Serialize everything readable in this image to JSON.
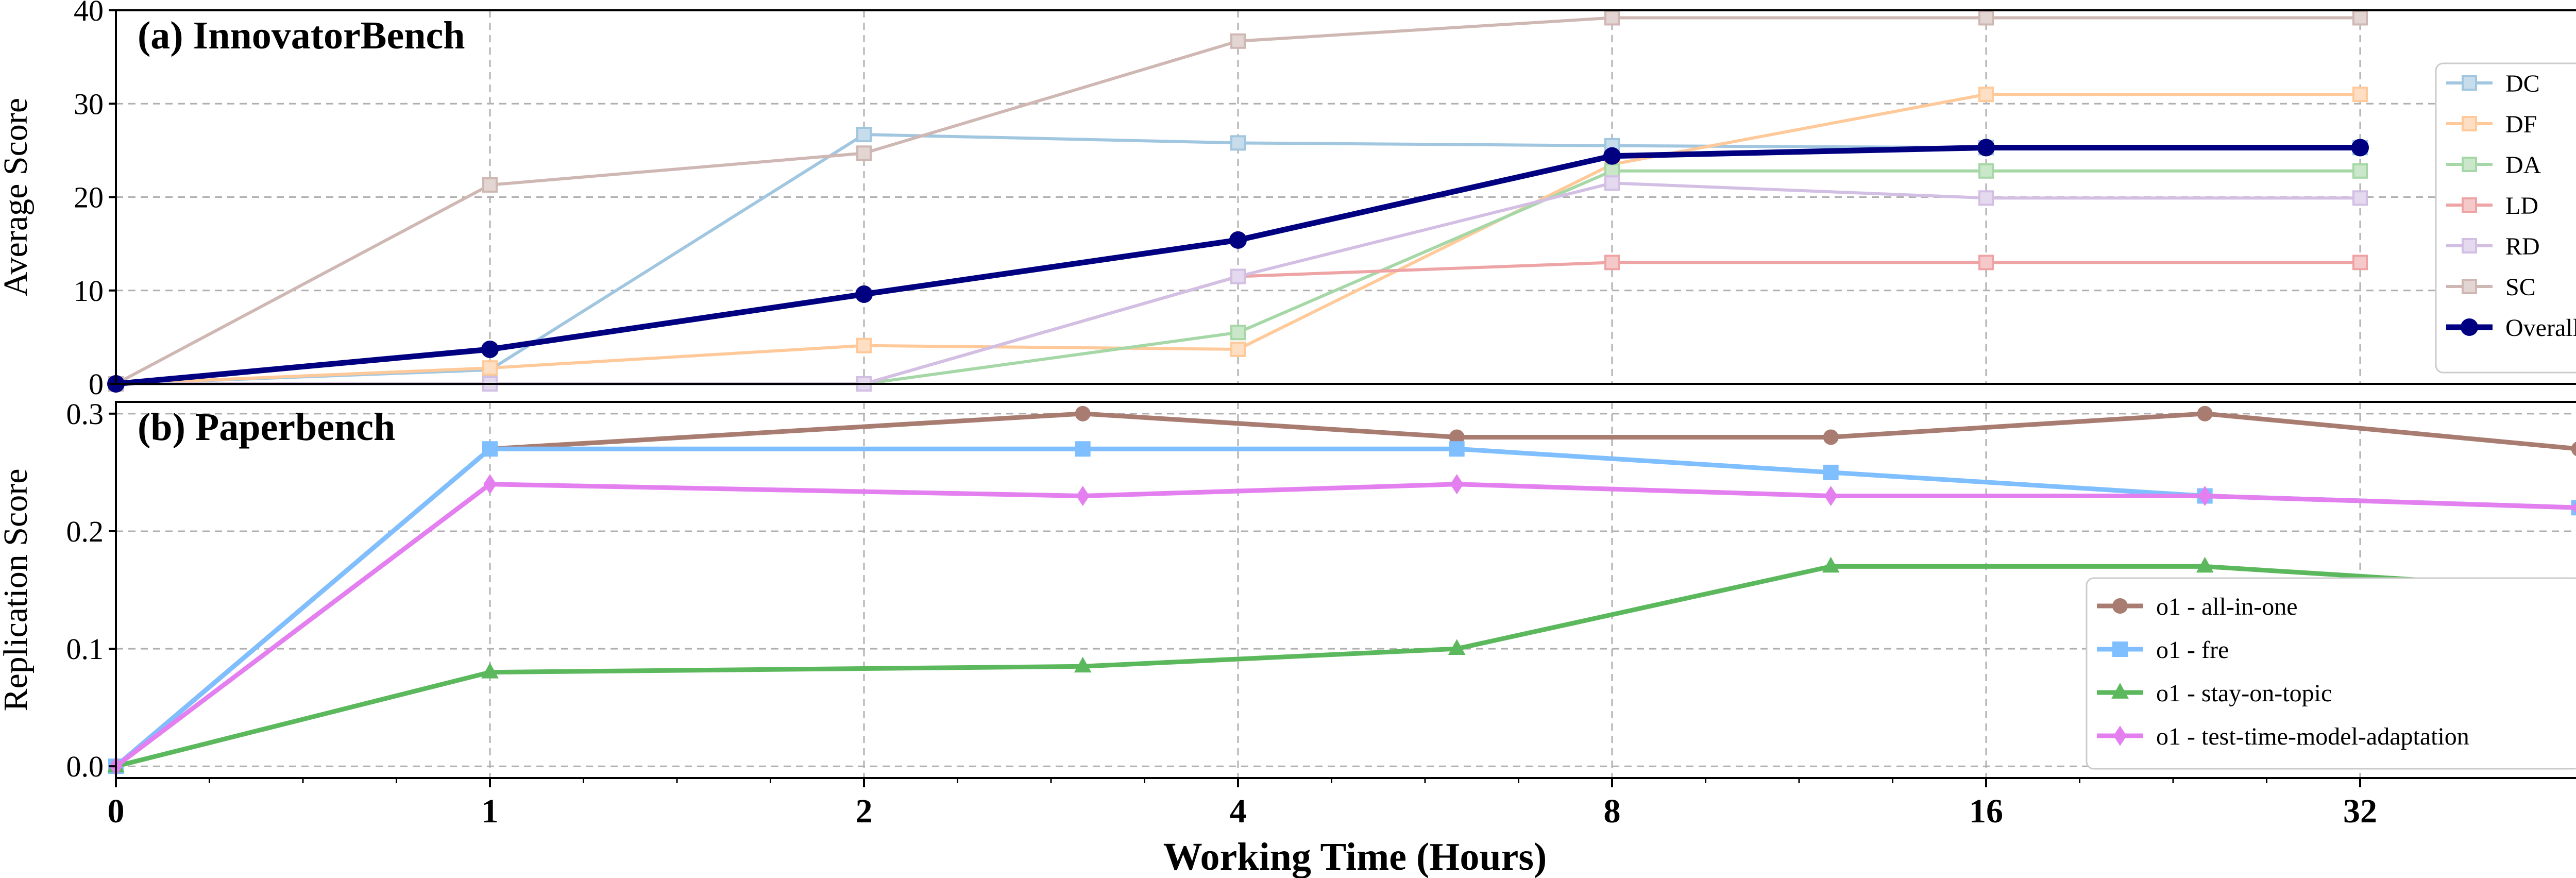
{
  "chart_data": [
    {
      "type": "line",
      "title": "(a) InnovatorBench",
      "xlabel": "",
      "ylabel": "Average Score",
      "x_scale": "log2",
      "x_ticks": [
        0,
        1,
        2,
        4,
        8,
        16,
        32
      ],
      "ylim": [
        0,
        40
      ],
      "y_ticks": [
        0,
        10,
        20,
        30,
        40
      ],
      "grid": true,
      "legend": "right",
      "x": [
        0,
        1,
        2,
        4,
        8,
        16,
        32
      ],
      "series": [
        {
          "name": "DC",
          "color": "#1f77b4",
          "marker": "square",
          "values": [
            0,
            1.5,
            26.7,
            25.8,
            25.5,
            25.3,
            25.3
          ]
        },
        {
          "name": "DF",
          "color": "#ff7f0e",
          "marker": "square",
          "values": [
            0,
            1.7,
            4.1,
            3.7,
            23.5,
            31.0,
            31.0
          ]
        },
        {
          "name": "DA",
          "color": "#2ca02c",
          "marker": "square",
          "values": [
            0,
            0,
            0,
            5.5,
            22.8,
            22.8,
            22.8
          ]
        },
        {
          "name": "LD",
          "color": "#d62728",
          "marker": "square",
          "values": [
            0,
            0,
            0,
            11.5,
            13.0,
            13.0,
            13.0
          ]
        },
        {
          "name": "RD",
          "color": "#9467bd",
          "marker": "square",
          "values": [
            0,
            0,
            0,
            11.5,
            21.5,
            19.9,
            19.9
          ]
        },
        {
          "name": "SC",
          "color": "#8c564b",
          "marker": "square",
          "values": [
            0,
            21.3,
            24.7,
            36.7,
            39.2,
            39.2,
            39.2
          ]
        },
        {
          "name": "Overall",
          "color": "#000080",
          "marker": "circle",
          "values": [
            0,
            3.7,
            9.6,
            15.4,
            24.4,
            25.3,
            25.3
          ]
        }
      ]
    },
    {
      "type": "line",
      "title": "(b) Paperbench",
      "xlabel": "Working Time (Hours)",
      "ylabel": "Replication Score",
      "x_scale": "log2",
      "x_ticks": [
        0,
        1,
        2,
        4,
        8,
        16,
        32
      ],
      "ylim": [
        -0.01,
        0.31
      ],
      "y_ticks": [
        0.0,
        0.1,
        0.2,
        0.3
      ],
      "grid": true,
      "legend": "lower-right",
      "series": [
        {
          "name": "o1 - all-in-one",
          "color": "#a87c70",
          "marker": "circle",
          "x": [
            0,
            1,
            3,
            6,
            12,
            24,
            48
          ],
          "values": [
            0,
            0.27,
            0.3,
            0.28,
            0.28,
            0.3,
            0.27
          ]
        },
        {
          "name": "o1 - fre",
          "color": "#7fbfff",
          "marker": "square",
          "x": [
            0,
            1,
            3,
            6,
            12,
            24,
            48
          ],
          "values": [
            0,
            0.27,
            0.27,
            0.27,
            0.25,
            0.23,
            0.22
          ]
        },
        {
          "name": "o1 - stay-on-topic",
          "color": "#5cb85c",
          "marker": "triangle",
          "x": [
            0,
            1,
            3,
            6,
            12,
            24,
            48
          ],
          "values": [
            0,
            0.08,
            0.085,
            0.1,
            0.17,
            0.17,
            0.15
          ]
        },
        {
          "name": "o1 - test-time-model-adaptation",
          "color": "#e47ff0",
          "marker": "diamond",
          "x": [
            0,
            1,
            3,
            6,
            12,
            24,
            48
          ],
          "values": [
            0,
            0.24,
            0.23,
            0.24,
            0.23,
            0.23,
            0.22
          ]
        }
      ]
    }
  ]
}
